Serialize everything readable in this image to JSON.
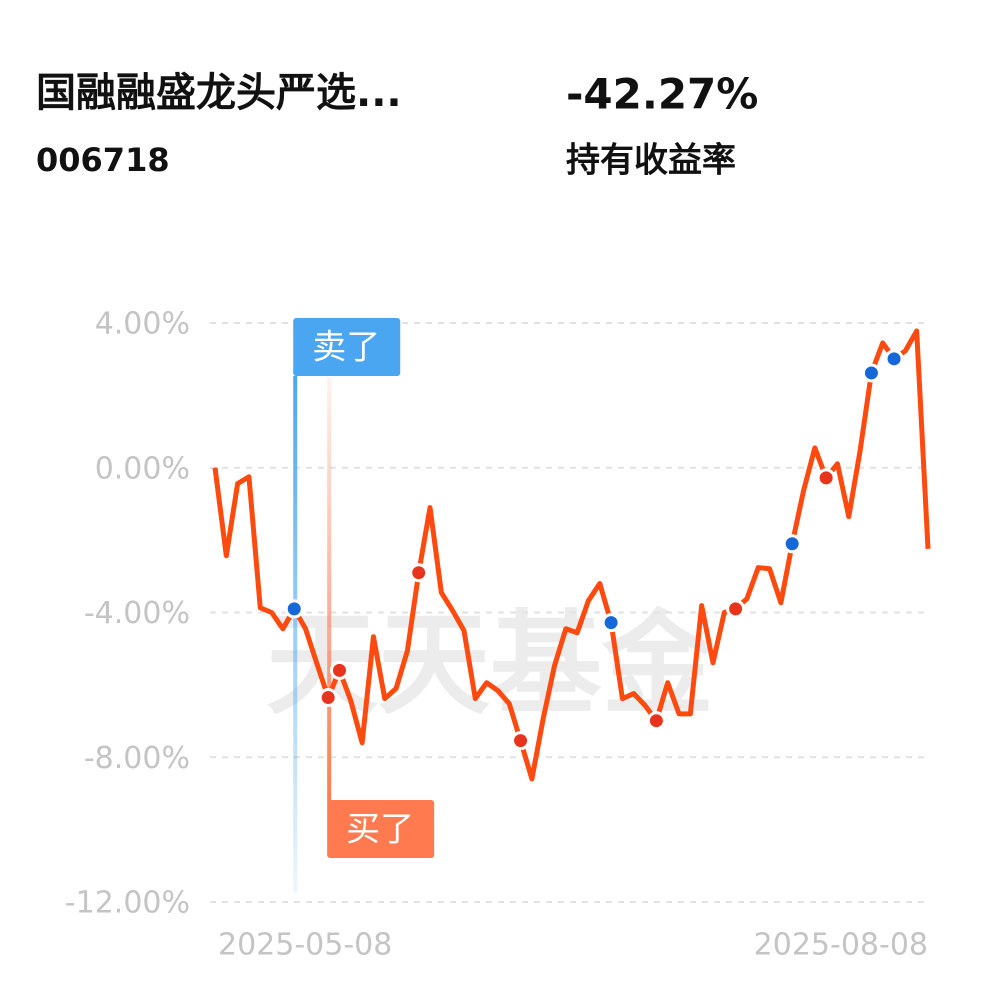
{
  "header": {
    "title": "国融融盛龙头严选...",
    "code": "006718",
    "return_value": "-42.27%",
    "return_label": "持有收益率"
  },
  "chart_data": {
    "type": "line",
    "watermark": "天天基金",
    "categories": [
      "2025-05-08",
      null,
      null,
      null,
      null,
      null,
      null,
      null,
      null,
      null,
      null,
      null,
      null,
      null,
      null,
      null,
      null,
      null,
      null,
      null,
      null,
      null,
      null,
      null,
      null,
      null,
      null,
      null,
      null,
      null,
      null,
      null,
      null,
      null,
      null,
      null,
      null,
      null,
      null,
      null,
      null,
      null,
      null,
      null,
      null,
      null,
      null,
      null,
      null,
      null,
      null,
      null,
      null,
      null,
      null,
      null,
      null,
      null,
      null,
      null,
      null,
      null,
      null,
      "2025-08-08"
    ],
    "series": [
      {
        "name": "持有收益率",
        "color": "#ff4a0f",
        "values": [
          0.0,
          -2.43,
          -0.44,
          -0.25,
          -3.87,
          -4.0,
          -4.45,
          -3.9,
          -4.45,
          -5.41,
          -6.35,
          -5.6,
          -6.44,
          -7.6,
          -4.67,
          -6.38,
          -6.1,
          -5.06,
          -2.9,
          -1.1,
          -3.45,
          -3.95,
          -4.5,
          -6.38,
          -5.94,
          -6.16,
          -6.52,
          -7.54,
          -8.6,
          -6.93,
          -5.47,
          -4.45,
          -4.56,
          -3.67,
          -3.2,
          -4.28,
          -6.38,
          -6.24,
          -6.57,
          -6.99,
          -5.94,
          -6.8,
          -6.8,
          -3.81,
          -5.39,
          -4.0,
          -3.9,
          -3.62,
          -2.76,
          -2.79,
          -3.73,
          -2.1,
          -0.64,
          0.55,
          -0.28,
          0.11,
          -1.35,
          0.47,
          2.62,
          3.45,
          3.01,
          3.23,
          3.78,
          -2.24
        ]
      }
    ],
    "markers": {
      "sell": {
        "color": "#1668d8",
        "indices": [
          7,
          35,
          51,
          58,
          60
        ]
      },
      "buy": {
        "color": "#e8341c",
        "indices": [
          10,
          11,
          18,
          27,
          39,
          46,
          54
        ]
      }
    },
    "annotations": [
      {
        "text": "卖了",
        "index": 7,
        "color": "#4ba6f2"
      },
      {
        "text": "买了",
        "index": 10,
        "color": "#ff7a4f"
      }
    ],
    "ylim": [
      -12,
      4
    ],
    "yticks": [
      {
        "value": 4,
        "label": "4.00%"
      },
      {
        "value": 0,
        "label": "0.00%"
      },
      {
        "value": -4,
        "label": "-4.00%"
      },
      {
        "value": -8,
        "label": "-8.00%"
      },
      {
        "value": -12,
        "label": "-12.00%"
      }
    ],
    "grid": true
  }
}
